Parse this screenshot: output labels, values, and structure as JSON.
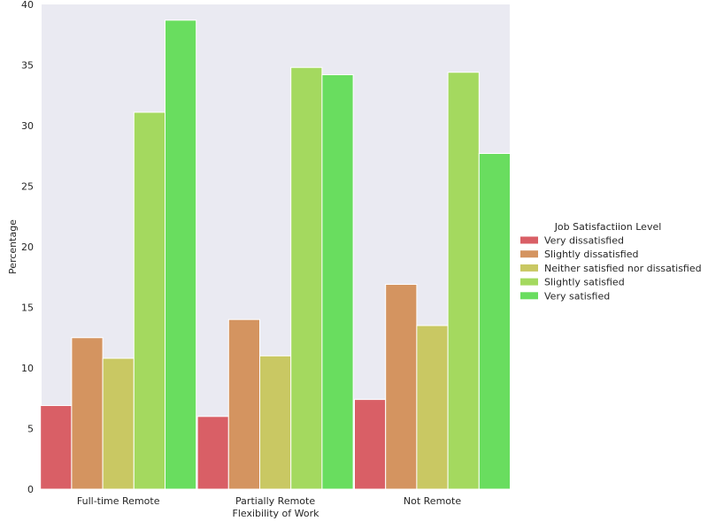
{
  "chart_data": {
    "type": "bar",
    "title": "",
    "xlabel": "Flexibility of Work",
    "ylabel": "Percentage",
    "categories": [
      "Full-time Remote",
      "Partially Remote",
      "Not Remote"
    ],
    "ylim": [
      0,
      40
    ],
    "yticks": [
      "0",
      "5",
      "10",
      "15",
      "20",
      "25",
      "30",
      "35",
      "40"
    ],
    "grid": false,
    "legend": {
      "title": "Job Satisfactiion Level",
      "placement": "right"
    },
    "series": [
      {
        "name": "Very dissatisfied",
        "color": "#d95f66",
        "values": [
          6.9,
          6.0,
          7.4
        ]
      },
      {
        "name": "Slightly dissatisfied",
        "color": "#d49460",
        "values": [
          12.5,
          14.0,
          16.9
        ]
      },
      {
        "name": "Neither satisfied nor dissatisfied",
        "color": "#c9c863",
        "values": [
          10.8,
          11.0,
          13.5
        ]
      },
      {
        "name": "Slightly satisfied",
        "color": "#a4d95f",
        "values": [
          31.1,
          34.8,
          34.4
        ]
      },
      {
        "name": "Very satisfied",
        "color": "#69dd5f",
        "values": [
          38.7,
          34.2,
          27.7
        ]
      }
    ],
    "colors": {
      "plot_background": "#eaeaf2",
      "bar_edge": "#ffffff"
    }
  }
}
